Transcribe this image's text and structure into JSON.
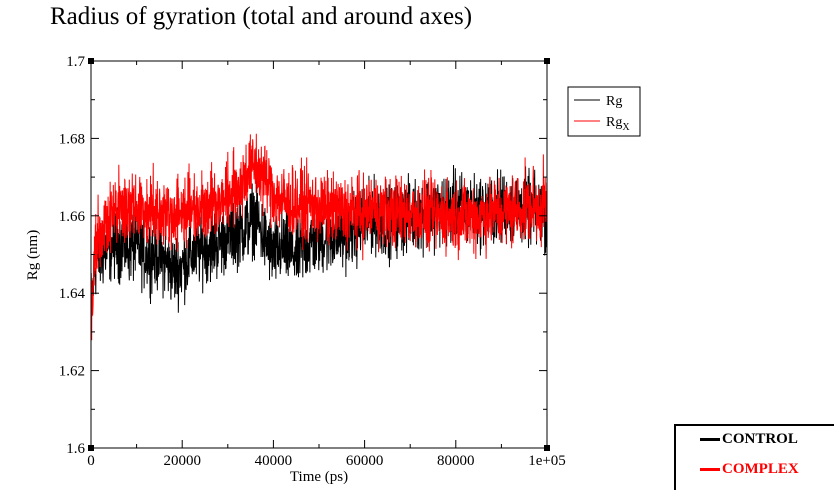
{
  "title": "Radius of gyration (total and around axes)",
  "chart_data": {
    "type": "line",
    "title": "Radius of gyration (total and around axes)",
    "xlabel": "Time (ps)",
    "ylabel": "Rg (nm)",
    "xlim": [
      0,
      100000
    ],
    "ylim": [
      1.6,
      1.7
    ],
    "x_ticks": [
      0,
      20000,
      40000,
      60000,
      80000,
      100000
    ],
    "x_tick_labels": [
      "0",
      "20000",
      "40000",
      "60000",
      "80000",
      "1e+05"
    ],
    "y_ticks": [
      1.6,
      1.62,
      1.64,
      1.66,
      1.68,
      1.7
    ],
    "y_tick_labels": [
      "1.6",
      "1.62",
      "1.64",
      "1.66",
      "1.68",
      "1.7"
    ],
    "grid": false,
    "legend_position": "top-right",
    "series": [
      {
        "name": "Rg",
        "color": "#000000",
        "mean_x": [
          0,
          1000,
          3000,
          5000,
          8000,
          10000,
          12000,
          15000,
          18000,
          20000,
          22000,
          25000,
          28000,
          30000,
          32000,
          34000,
          36000,
          38000,
          40000,
          42000,
          45000,
          48000,
          50000,
          55000,
          60000,
          62000,
          65000,
          70000,
          75000,
          80000,
          85000,
          90000,
          95000,
          100000
        ],
        "mean_y": [
          1.637,
          1.648,
          1.651,
          1.653,
          1.652,
          1.652,
          1.65,
          1.65,
          1.646,
          1.647,
          1.65,
          1.652,
          1.653,
          1.655,
          1.656,
          1.657,
          1.66,
          1.654,
          1.65,
          1.652,
          1.65,
          1.653,
          1.654,
          1.655,
          1.658,
          1.66,
          1.658,
          1.66,
          1.661,
          1.662,
          1.661,
          1.662,
          1.662,
          1.66
        ],
        "noise_amplitude": 0.009
      },
      {
        "name": "Rgx",
        "color": "#ff0000",
        "mean_x": [
          0,
          1000,
          3000,
          5000,
          8000,
          10000,
          12000,
          15000,
          18000,
          20000,
          22000,
          25000,
          28000,
          30000,
          32000,
          34000,
          36000,
          38000,
          40000,
          42000,
          45000,
          48000,
          50000,
          55000,
          60000,
          62000,
          65000,
          70000,
          75000,
          80000,
          85000,
          90000,
          95000,
          100000
        ],
        "mean_y": [
          1.634,
          1.652,
          1.658,
          1.661,
          1.662,
          1.662,
          1.661,
          1.662,
          1.66,
          1.661,
          1.662,
          1.663,
          1.664,
          1.665,
          1.667,
          1.671,
          1.673,
          1.67,
          1.666,
          1.664,
          1.663,
          1.663,
          1.662,
          1.661,
          1.661,
          1.662,
          1.661,
          1.661,
          1.66,
          1.66,
          1.66,
          1.661,
          1.662,
          1.663
        ],
        "noise_amplitude": 0.009
      }
    ]
  },
  "legend": {
    "entries": [
      {
        "label": "Rg",
        "color": "#000000"
      },
      {
        "label": "Rg",
        "subscript": "X",
        "color": "#ff0000"
      }
    ]
  },
  "legend2": {
    "entries": [
      {
        "label": "CONTROL",
        "color": "#000000"
      },
      {
        "label": "COMPLEX",
        "color": "#ff0000"
      }
    ]
  }
}
